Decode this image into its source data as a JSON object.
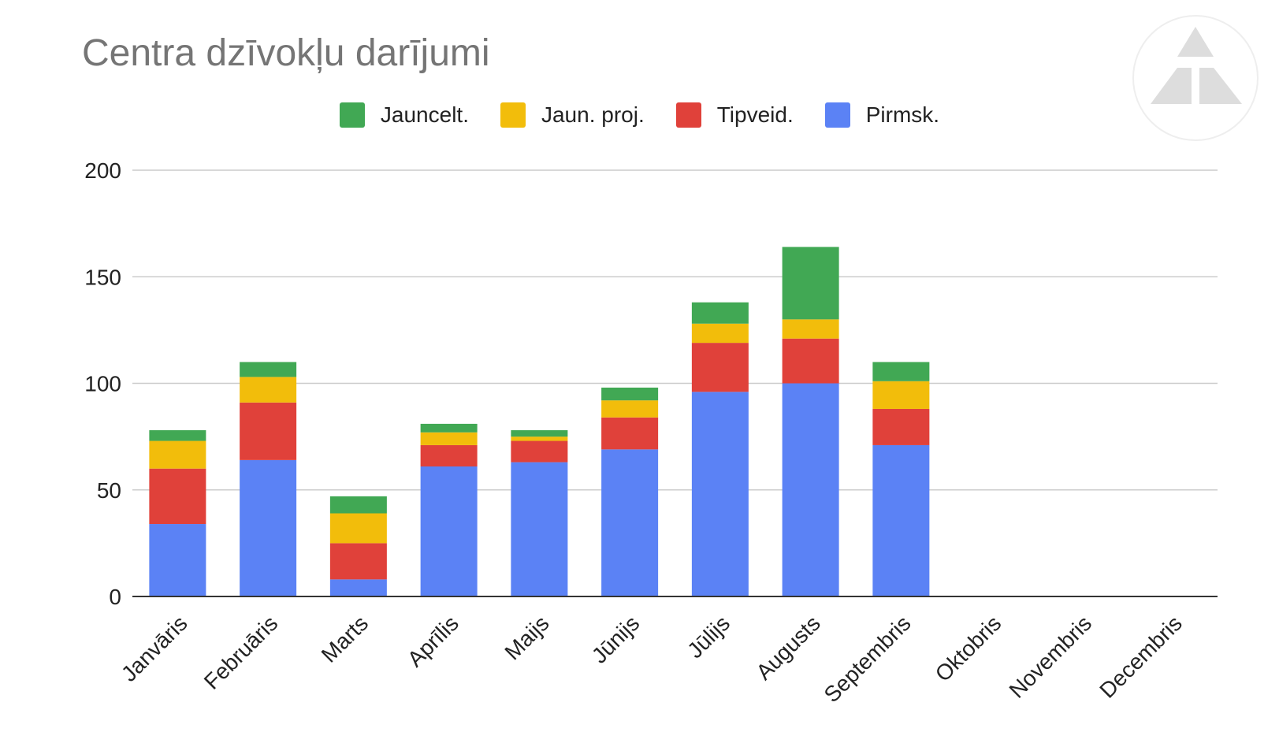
{
  "chart_data": {
    "type": "bar",
    "stacked": true,
    "title": "Centra dzīvokļu darījumi",
    "xlabel": "",
    "ylabel": "",
    "ylim": [
      0,
      200
    ],
    "yticks": [
      0,
      50,
      100,
      150,
      200
    ],
    "grid": true,
    "legend_position": "top",
    "categories": [
      "Janvāris",
      "Februāris",
      "Marts",
      "Aprīlis",
      "Maijs",
      "Jūnijs",
      "Jūlijs",
      "Augusts",
      "Septembris",
      "Oktobris",
      "Novembris",
      "Decembris"
    ],
    "series": [
      {
        "name": "Pirmsk.",
        "color": "#5b82f5",
        "values": [
          34,
          64,
          8,
          61,
          63,
          69,
          96,
          100,
          71,
          0,
          0,
          0
        ]
      },
      {
        "name": "Tipveid.",
        "color": "#e0413a",
        "values": [
          26,
          27,
          17,
          10,
          10,
          15,
          23,
          21,
          17,
          0,
          0,
          0
        ]
      },
      {
        "name": "Jaun. proj.",
        "color": "#f2bd0b",
        "values": [
          13,
          12,
          14,
          6,
          2,
          8,
          9,
          9,
          13,
          0,
          0,
          0
        ]
      },
      {
        "name": "Jauncelt.",
        "color": "#41a854",
        "values": [
          5,
          7,
          8,
          4,
          3,
          6,
          10,
          34,
          9,
          0,
          0,
          0
        ]
      }
    ]
  },
  "legend_order": [
    "Jauncelt.",
    "Jaun. proj.",
    "Tipveid.",
    "Pirmsk."
  ],
  "logo": {
    "icon": "triangle-logo-icon",
    "color": "#dddddd"
  }
}
